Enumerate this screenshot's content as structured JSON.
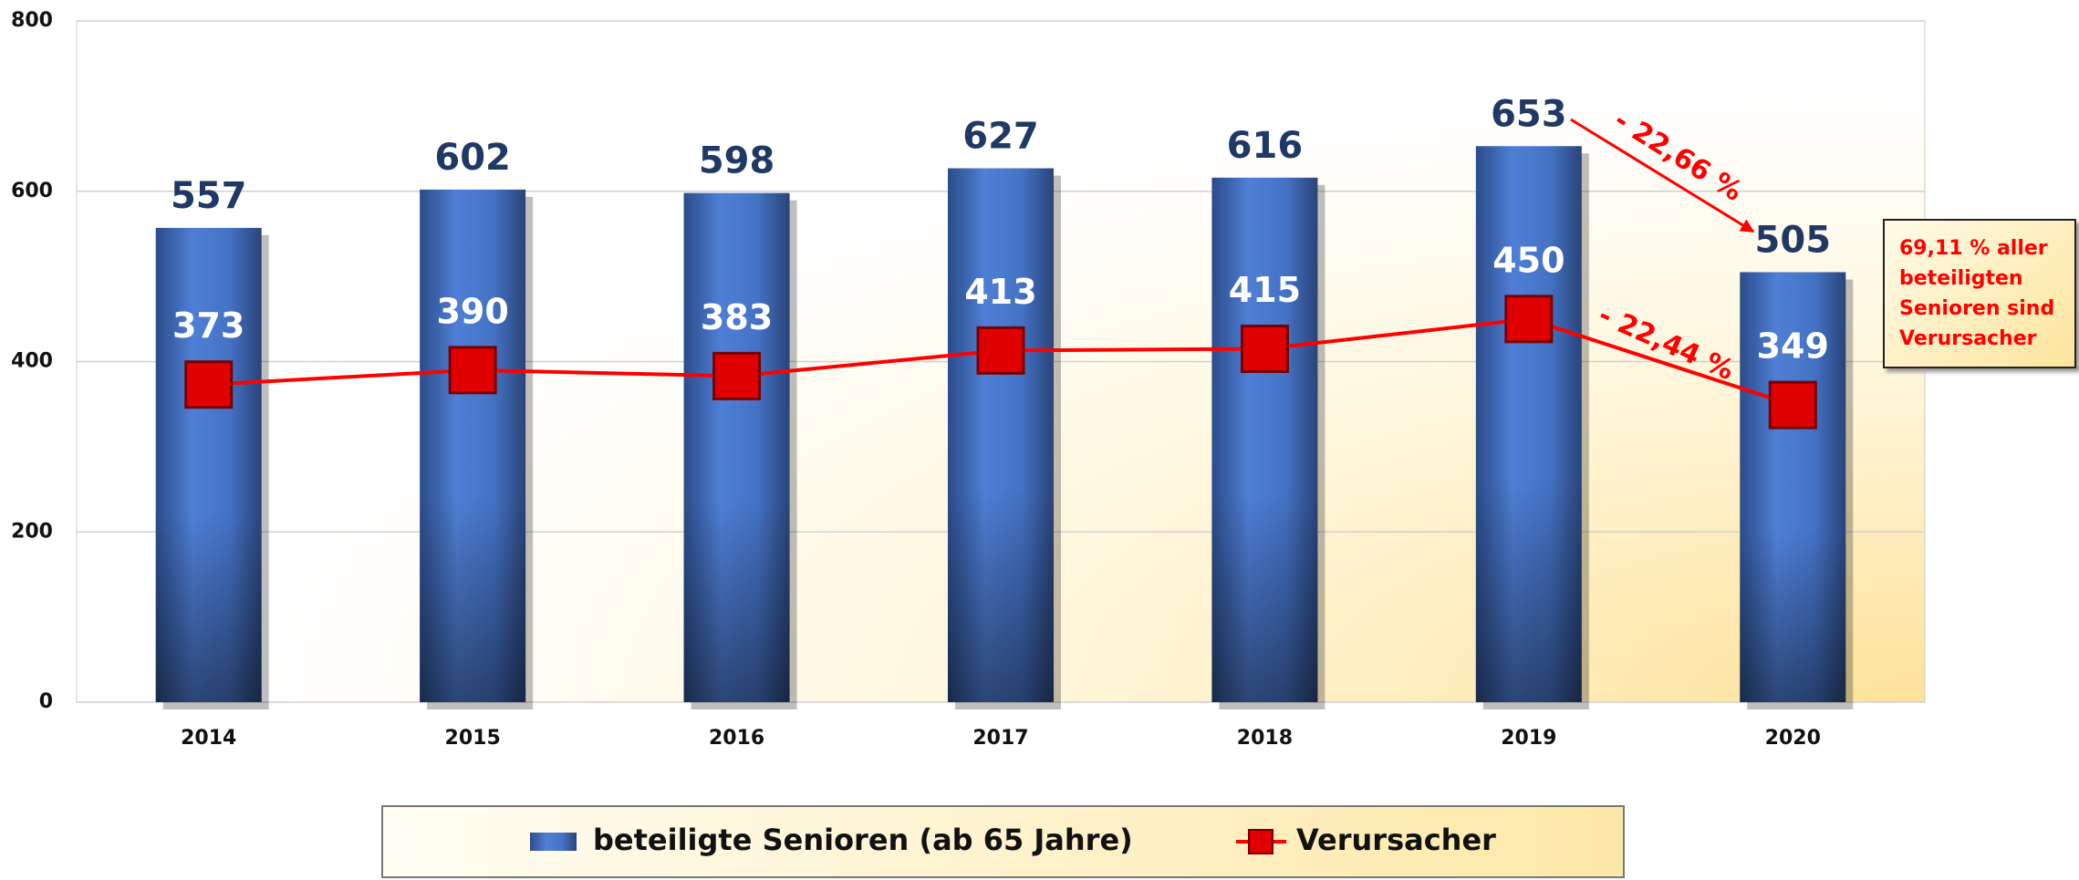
{
  "chart_data": {
    "type": "bar",
    "categories": [
      "2014",
      "2015",
      "2016",
      "2017",
      "2018",
      "2019",
      "2020"
    ],
    "series": [
      {
        "name": "beteiligte Senioren (ab 65 Jahre)",
        "type": "bar",
        "color": "#4472c4",
        "values": [
          557,
          602,
          598,
          627,
          616,
          653,
          505
        ]
      },
      {
        "name": "Verursacher",
        "type": "line",
        "color": "#ff0000",
        "values": [
          373,
          390,
          383,
          413,
          415,
          450,
          349
        ]
      }
    ],
    "ylim": [
      0,
      800
    ],
    "yticks": [
      0,
      200,
      400,
      600,
      800
    ],
    "grid": true,
    "annotations": [
      "- 22,66 %",
      "- 22,44 %",
      "69,11 % aller beteiligten Senioren sind Verursacher"
    ]
  }
}
